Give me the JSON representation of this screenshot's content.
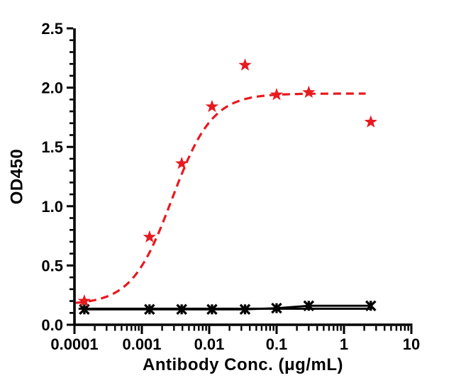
{
  "chart_data": {
    "type": "scatter",
    "title": "",
    "xlabel": "Antibody Conc. (μg/mL)",
    "ylabel": "OD450",
    "x_scale": "log10",
    "xlim": [
      0.0001,
      10
    ],
    "ylim": [
      0.0,
      2.5
    ],
    "grid": false,
    "legend": "none",
    "x_ticks": {
      "values": [
        0.0001,
        0.001,
        0.01,
        0.1,
        1,
        10
      ],
      "labels": [
        "0.0001",
        "0.001",
        "0.01",
        "0.1",
        "1",
        "10"
      ]
    },
    "y_ticks": {
      "values": [
        0.0,
        0.5,
        1.0,
        1.5,
        2.0,
        2.5
      ],
      "labels": [
        "0.0",
        "0.5",
        "1.0",
        "1.5",
        "2.0",
        "2.5"
      ]
    },
    "y_minor_step": 0.1,
    "x_minor_ticks": "log-decades-2-9",
    "series": [
      {
        "name": "series-red-star",
        "color": "#E8191F",
        "marker": "filled-star",
        "line_style": "dashed",
        "x": [
          0.00014,
          0.0013,
          0.0039,
          0.011,
          0.034,
          0.1,
          0.3,
          2.5
        ],
        "y": [
          0.2,
          0.74,
          1.36,
          1.84,
          2.19,
          1.94,
          1.96,
          1.71
        ],
        "fit": {
          "model": "4PL",
          "bottom": 0.17,
          "top": 1.95,
          "ec50": 0.0028,
          "hill": 1.45,
          "x_start": 0.000105,
          "x_end": 2.1
        }
      },
      {
        "name": "series-black-x",
        "color": "#000000",
        "marker": "asterisk-x",
        "line_style": "solid",
        "x": [
          0.00014,
          0.0013,
          0.0039,
          0.011,
          0.034,
          0.1,
          0.3,
          2.5
        ],
        "y": [
          0.13,
          0.13,
          0.13,
          0.13,
          0.13,
          0.14,
          0.16,
          0.16
        ],
        "fit": {
          "model": "constant",
          "value": 0.135,
          "x_start": 0.000115,
          "x_end": 2.5
        }
      }
    ]
  }
}
